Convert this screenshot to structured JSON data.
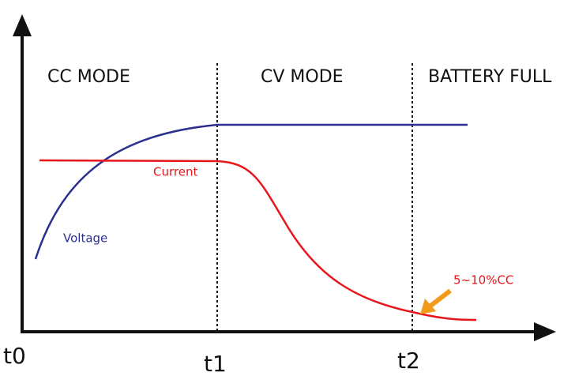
{
  "modes": [
    "CC MODE",
    "CV MODE",
    "BATTERY FULL"
  ],
  "curves": {
    "current": "Current",
    "voltage": "Voltage"
  },
  "annotation": "5~10%CC",
  "time_labels": [
    "t0",
    "t1",
    "t2"
  ]
}
